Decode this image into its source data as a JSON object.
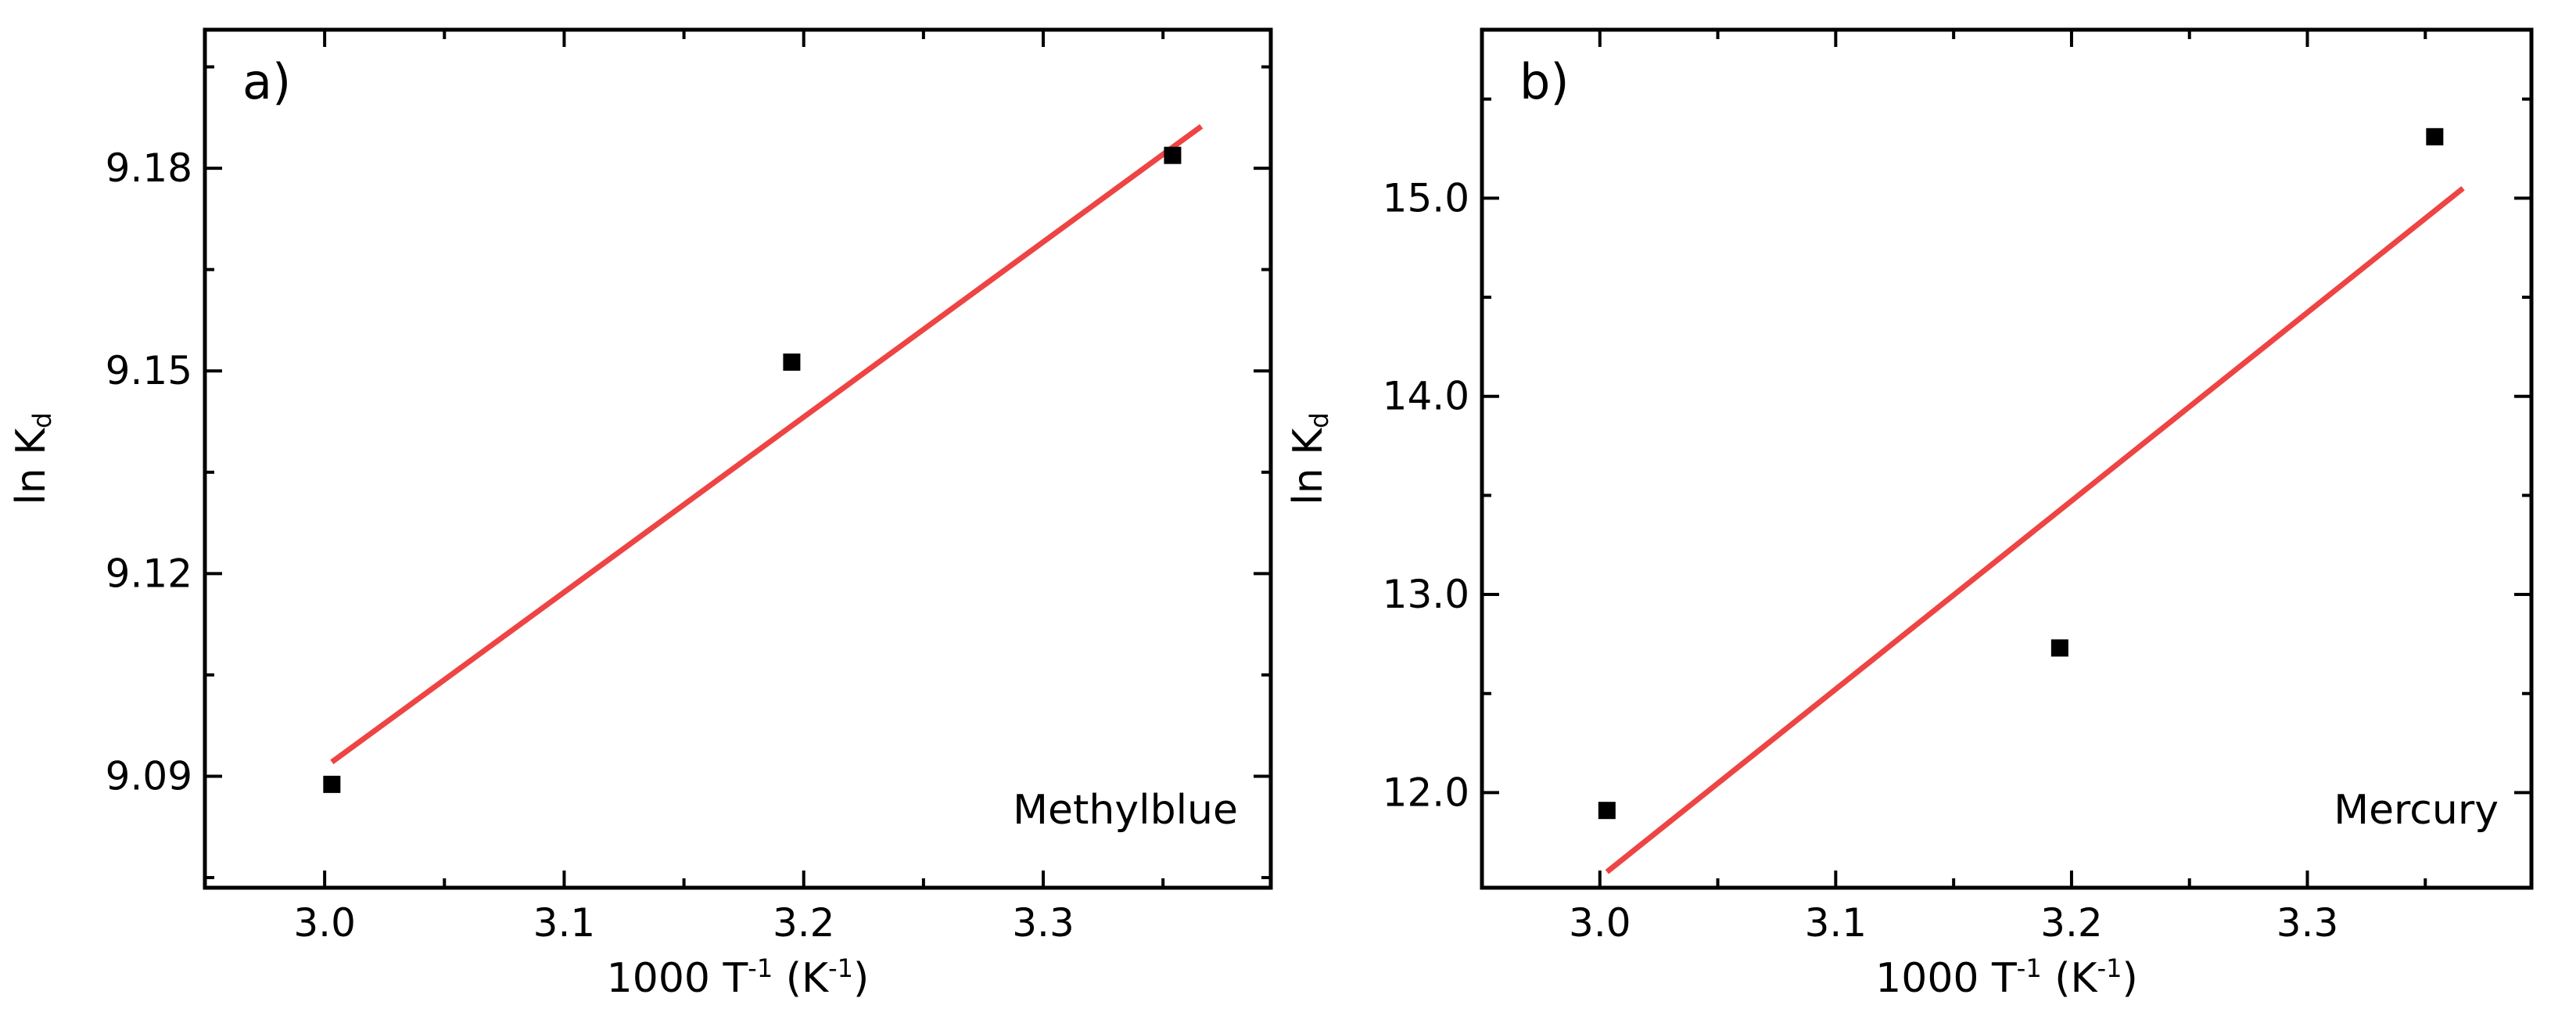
{
  "chart_data": [
    {
      "type": "scatter",
      "panel_label": "a)",
      "annotation": "Methylblue",
      "xlabel": {
        "main": "1000 T",
        "sup1": "-1",
        "mid": " (K",
        "sup2": "-1",
        "end": ")"
      },
      "ylabel": {
        "main": "ln K",
        "sub": "d"
      },
      "xlim": [
        2.95,
        3.395
      ],
      "ylim": [
        9.0735,
        9.2005
      ],
      "xticks": [
        3.0,
        3.1,
        3.2,
        3.3
      ],
      "xtick_labels": [
        "3.0",
        "3.1",
        "3.2",
        "3.3"
      ],
      "yticks": [
        9.09,
        9.12,
        9.15,
        9.18
      ],
      "ytick_labels": [
        "9.09",
        "9.12",
        "9.15",
        "9.18"
      ],
      "points": {
        "x": [
          3.003,
          3.195,
          3.354
        ],
        "y": [
          9.0888,
          9.1513,
          9.1819
        ]
      },
      "fit_line": {
        "x": [
          3.003,
          3.366
        ],
        "y": [
          9.0921,
          9.1862
        ],
        "color": "#ee4444"
      }
    },
    {
      "type": "scatter",
      "panel_label": "b)",
      "annotation": "Mercury",
      "xlabel": {
        "main": "1000 T",
        "sup1": "-1",
        "mid": " (K",
        "sup2": "-1",
        "end": ")"
      },
      "ylabel": {
        "main": "ln K",
        "sub": "d"
      },
      "xlim": [
        2.95,
        3.395
      ],
      "ylim": [
        11.52,
        15.85
      ],
      "xticks": [
        3.0,
        3.1,
        3.2,
        3.3
      ],
      "xtick_labels": [
        "3.0",
        "3.1",
        "3.2",
        "3.3"
      ],
      "yticks": [
        12.0,
        13.0,
        14.0,
        15.0
      ],
      "ytick_labels": [
        "12.0",
        "13.0",
        "14.0",
        "15.0"
      ],
      "points": {
        "x": [
          3.003,
          3.195,
          3.354
        ],
        "y": [
          11.91,
          12.73,
          15.31
        ]
      },
      "fit_line": {
        "x": [
          3.003,
          3.366
        ],
        "y": [
          11.6,
          15.05
        ],
        "color": "#ee4444"
      }
    }
  ]
}
